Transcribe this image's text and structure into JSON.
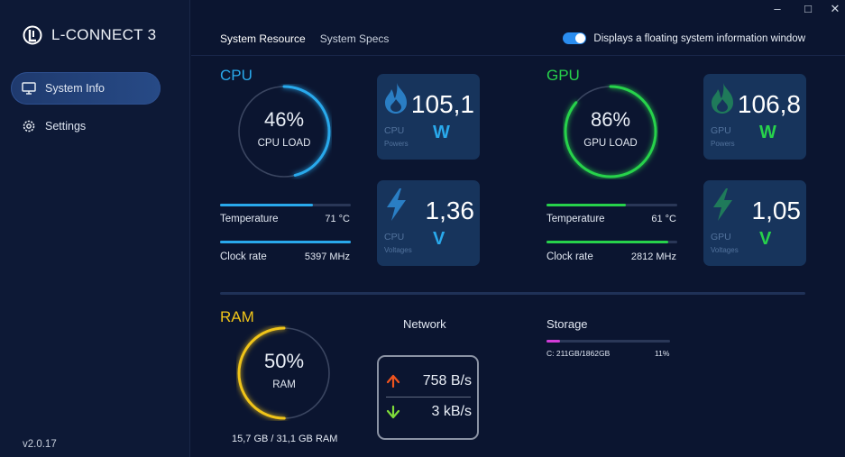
{
  "app": {
    "name": "L-CONNECT 3",
    "version": "v2.0.17"
  },
  "sidebar": {
    "items": [
      {
        "label": "System Info",
        "icon": "monitor-icon",
        "active": true
      },
      {
        "label": "Settings",
        "icon": "gear-icon",
        "active": false
      }
    ]
  },
  "window_controls": {
    "minimize": "–",
    "restore": "□",
    "close": "✕"
  },
  "tabs": [
    {
      "label": "System Resource",
      "active": true
    },
    {
      "label": "System Specs",
      "active": false
    }
  ],
  "floating_toggle": {
    "label": "Displays a floating system information window",
    "on": true
  },
  "cpu": {
    "title": "CPU",
    "color": "#29a9ec",
    "load_value": "46%",
    "load_fraction": 0.46,
    "load_label": "CPU LOAD",
    "temperature_label": "Temperature",
    "temperature_value": "71 °C",
    "temperature_fraction": 0.71,
    "clock_label": "Clock rate",
    "clock_value": "5397 MHz",
    "clock_fraction": 1.0,
    "power": {
      "value": "105,1",
      "unit": "W",
      "caption": "CPU",
      "sub": "Powers",
      "icon": "flame-icon"
    },
    "voltage": {
      "value": "1,36",
      "unit": "V",
      "caption": "CPU",
      "sub": "Voltages",
      "icon": "bolt-icon"
    }
  },
  "gpu": {
    "title": "GPU",
    "color": "#27d24b",
    "load_value": "86%",
    "load_fraction": 0.86,
    "load_label": "GPU LOAD",
    "temperature_label": "Temperature",
    "temperature_value": "61 °C",
    "temperature_fraction": 0.61,
    "clock_label": "Clock rate",
    "clock_value": "2812 MHz",
    "clock_fraction": 0.93,
    "power": {
      "value": "106,8",
      "unit": "W",
      "caption": "GPU",
      "sub": "Powers",
      "icon": "flame-icon"
    },
    "voltage": {
      "value": "1,05",
      "unit": "V",
      "caption": "GPU",
      "sub": "Voltages",
      "icon": "bolt-icon"
    }
  },
  "ram": {
    "title": "RAM",
    "color": "#f0c419",
    "load_value": "50%",
    "load_fraction": 0.5,
    "load_label": "RAM",
    "usage": "15,7 GB / 31,1 GB RAM"
  },
  "network": {
    "title": "Network",
    "upload": {
      "value": "758 B/s",
      "icon": "arrow-up-icon",
      "color": "#f0541e"
    },
    "download": {
      "value": "3 kB/s",
      "icon": "arrow-down-icon",
      "color": "#7fdc3a"
    }
  },
  "storage": {
    "title": "Storage",
    "drive": "C: 211GB/1862GB",
    "percent": "11%",
    "fraction": 0.11,
    "color": "#d23cd8"
  }
}
